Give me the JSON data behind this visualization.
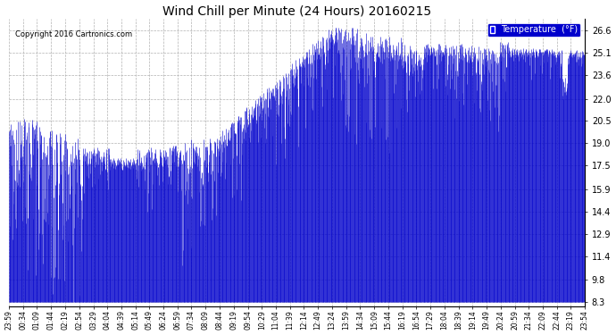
{
  "title": "Wind Chill per Minute (24 Hours) 20160215",
  "copyright": "Copyright 2016 Cartronics.com",
  "legend_label": "Temperature  (°F)",
  "line_color": "#0000cc",
  "background_color": "#ffffff",
  "grid_color": "#aaaaaa",
  "ytick_values": [
    8.3,
    9.8,
    11.4,
    12.9,
    14.4,
    15.9,
    17.5,
    19.0,
    20.5,
    22.0,
    23.6,
    25.1,
    26.6
  ],
  "ylim": [
    8.0,
    27.4
  ],
  "num_minutes": 1440,
  "x_tick_labels": [
    "23:59",
    "00:34",
    "01:09",
    "01:44",
    "02:19",
    "02:54",
    "03:29",
    "04:04",
    "04:39",
    "05:14",
    "05:49",
    "06:24",
    "06:59",
    "07:34",
    "08:09",
    "08:44",
    "09:19",
    "09:54",
    "10:29",
    "11:04",
    "11:39",
    "12:14",
    "12:49",
    "13:24",
    "13:59",
    "14:34",
    "15:09",
    "15:44",
    "16:19",
    "16:54",
    "17:29",
    "18:04",
    "18:39",
    "19:14",
    "19:49",
    "20:24",
    "20:59",
    "21:34",
    "22:09",
    "22:44",
    "23:19",
    "23:54"
  ],
  "figwidth": 6.9,
  "figheight": 3.75,
  "dpi": 100
}
